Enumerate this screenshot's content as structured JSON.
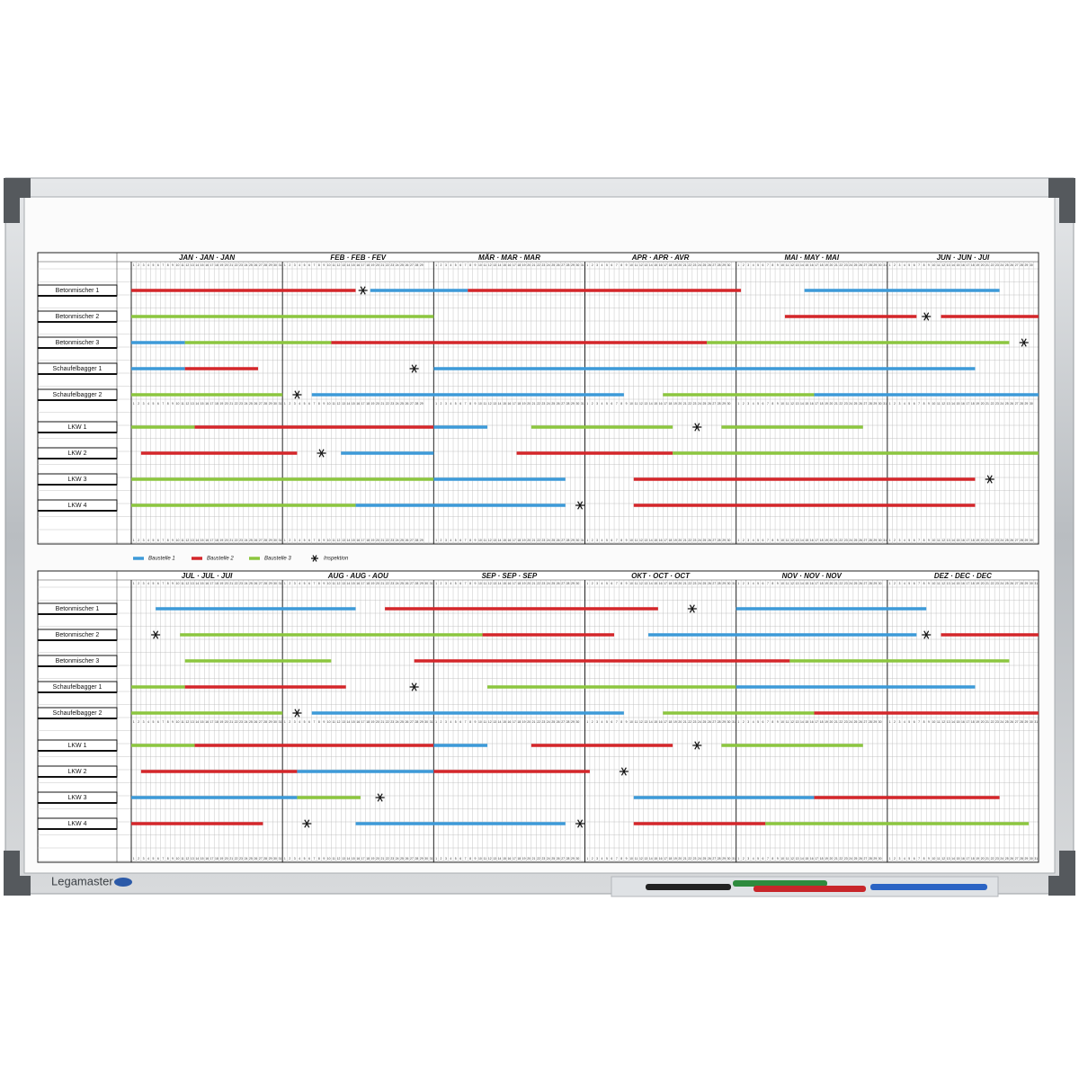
{
  "brand": "Legamaster",
  "legend": [
    {
      "label": "Baustelle 1",
      "color": "#3d9ad8"
    },
    {
      "label": "Baustelle 2",
      "color": "#d4262a"
    },
    {
      "label": "Baustelle 3",
      "color": "#8cc63f"
    },
    {
      "label": "Inspektion"
    }
  ],
  "row_labels": [
    "Betonmischer 1",
    "Betonmischer 2",
    "Betonmischer 3",
    "Schaufelbagger 1",
    "Schaufelbagger 2",
    "LKW 1",
    "LKW 2",
    "LKW 3",
    "LKW 4"
  ],
  "day_numbers": [
    1,
    2,
    3,
    4,
    5,
    6,
    7,
    8,
    9,
    10,
    11,
    12,
    13,
    14,
    15,
    16,
    17,
    18,
    19,
    20,
    21,
    22,
    23,
    24,
    25,
    26,
    27,
    28,
    29,
    30,
    31
  ],
  "halves": [
    {
      "months": [
        {
          "label": "JAN · JAN · JAN",
          "last_day": 31
        },
        {
          "label": "FEB · FEB · FEV",
          "last_day": 29
        },
        {
          "label": "MÄR · MAR · MAR",
          "last_day": 31
        },
        {
          "label": "APR · APR · AVR",
          "last_day": 30
        },
        {
          "label": "MAI · MAY · MAI",
          "last_day": 31
        },
        {
          "label": "JUN · JUN · JUI",
          "last_day": 30
        }
      ],
      "bars": [
        [
          {
            "site": 1,
            "start": 0,
            "end": 46
          },
          {
            "site": 0,
            "start": 49,
            "end": 69
          },
          {
            "site": 1,
            "start": 69,
            "end": 125
          },
          {
            "site": 0,
            "start": 138,
            "end": 178
          }
        ],
        [
          {
            "site": 2,
            "start": 0,
            "end": 62
          },
          {
            "site": 1,
            "start": 134,
            "end": 161
          },
          {
            "site": 1,
            "start": 166,
            "end": 186
          }
        ],
        [
          {
            "site": 0,
            "start": 0,
            "end": 11
          },
          {
            "site": 2,
            "start": 11,
            "end": 41
          },
          {
            "site": 1,
            "start": 41,
            "end": 118
          },
          {
            "site": 2,
            "start": 118,
            "end": 180
          }
        ],
        [
          {
            "site": 0,
            "start": 0,
            "end": 11
          },
          {
            "site": 1,
            "start": 11,
            "end": 26
          },
          {
            "site": 0,
            "start": 62,
            "end": 173
          }
        ],
        [
          {
            "site": 2,
            "start": 0,
            "end": 31
          },
          {
            "site": 0,
            "start": 37,
            "end": 101
          },
          {
            "site": 2,
            "start": 109,
            "end": 140
          },
          {
            "site": 0,
            "start": 140,
            "end": 186
          }
        ],
        [
          {
            "site": 2,
            "start": 0,
            "end": 13
          },
          {
            "site": 1,
            "start": 13,
            "end": 62
          },
          {
            "site": 0,
            "start": 62,
            "end": 73
          },
          {
            "site": 2,
            "start": 82,
            "end": 111
          },
          {
            "site": 2,
            "start": 121,
            "end": 150
          }
        ],
        [
          {
            "site": 1,
            "start": 2,
            "end": 34
          },
          {
            "site": 0,
            "start": 43,
            "end": 62
          },
          {
            "site": 1,
            "start": 79,
            "end": 111
          },
          {
            "site": 2,
            "start": 111,
            "end": 186
          }
        ],
        [
          {
            "site": 2,
            "start": 0,
            "end": 62
          },
          {
            "site": 0,
            "start": 62,
            "end": 89
          },
          {
            "site": 1,
            "start": 103,
            "end": 173
          }
        ],
        [
          {
            "site": 2,
            "start": 0,
            "end": 46
          },
          {
            "site": 0,
            "start": 46,
            "end": 89
          },
          {
            "site": 1,
            "start": 103,
            "end": 173
          }
        ]
      ],
      "inspections": [
        [
          47.5
        ],
        [
          163
        ],
        [
          183
        ],
        [
          58
        ],
        [
          34
        ],
        [
          116
        ],
        [
          39
        ],
        [
          176
        ],
        [
          92
        ]
      ]
    },
    {
      "months": [
        {
          "label": "JUL · JUL · JUI",
          "last_day": 31
        },
        {
          "label": "AUG · AUG · AOU",
          "last_day": 31
        },
        {
          "label": "SEP · SEP · SEP",
          "last_day": 30
        },
        {
          "label": "OKT · OCT · OCT",
          "last_day": 31
        },
        {
          "label": "NOV · NOV · NOV",
          "last_day": 30
        },
        {
          "label": "DEZ · DEC · DEC",
          "last_day": 31
        }
      ],
      "bars": [
        [
          {
            "site": 0,
            "start": 5,
            "end": 46
          },
          {
            "site": 1,
            "start": 52,
            "end": 108
          },
          {
            "site": 0,
            "start": 124,
            "end": 163
          }
        ],
        [
          {
            "site": 2,
            "start": 10,
            "end": 72
          },
          {
            "site": 1,
            "start": 72,
            "end": 99
          },
          {
            "site": 0,
            "start": 106,
            "end": 161
          },
          {
            "site": 1,
            "start": 166,
            "end": 186
          }
        ],
        [
          {
            "site": 2,
            "start": 11,
            "end": 41
          },
          {
            "site": 1,
            "start": 58,
            "end": 135
          },
          {
            "site": 2,
            "start": 135,
            "end": 180
          }
        ],
        [
          {
            "site": 2,
            "start": 0,
            "end": 11
          },
          {
            "site": 1,
            "start": 11,
            "end": 44
          },
          {
            "site": 2,
            "start": 73,
            "end": 124
          },
          {
            "site": 0,
            "start": 124,
            "end": 173
          }
        ],
        [
          {
            "site": 2,
            "start": 0,
            "end": 31
          },
          {
            "site": 0,
            "start": 37,
            "end": 101
          },
          {
            "site": 2,
            "start": 109,
            "end": 140
          },
          {
            "site": 1,
            "start": 140,
            "end": 186
          }
        ],
        [
          {
            "site": 2,
            "start": 0,
            "end": 13
          },
          {
            "site": 1,
            "start": 13,
            "end": 62
          },
          {
            "site": 0,
            "start": 62,
            "end": 73
          },
          {
            "site": 1,
            "start": 82,
            "end": 111
          },
          {
            "site": 2,
            "start": 121,
            "end": 150
          }
        ],
        [
          {
            "site": 1,
            "start": 2,
            "end": 34
          },
          {
            "site": 0,
            "start": 34,
            "end": 62
          },
          {
            "site": 1,
            "start": 62,
            "end": 94
          }
        ],
        [
          {
            "site": 0,
            "start": 0,
            "end": 34
          },
          {
            "site": 2,
            "start": 34,
            "end": 47
          },
          {
            "site": 0,
            "start": 103,
            "end": 140
          },
          {
            "site": 1,
            "start": 140,
            "end": 178
          }
        ],
        [
          {
            "site": 1,
            "start": 0,
            "end": 27
          },
          {
            "site": 0,
            "start": 46,
            "end": 89
          },
          {
            "site": 1,
            "start": 103,
            "end": 130
          },
          {
            "site": 2,
            "start": 130,
            "end": 184
          }
        ]
      ],
      "inspections": [
        [
          115
        ],
        [
          5,
          163
        ],
        [],
        [
          58
        ],
        [
          34
        ],
        [
          116
        ],
        [
          101
        ],
        [
          51
        ],
        [
          36,
          92
        ]
      ]
    }
  ]
}
